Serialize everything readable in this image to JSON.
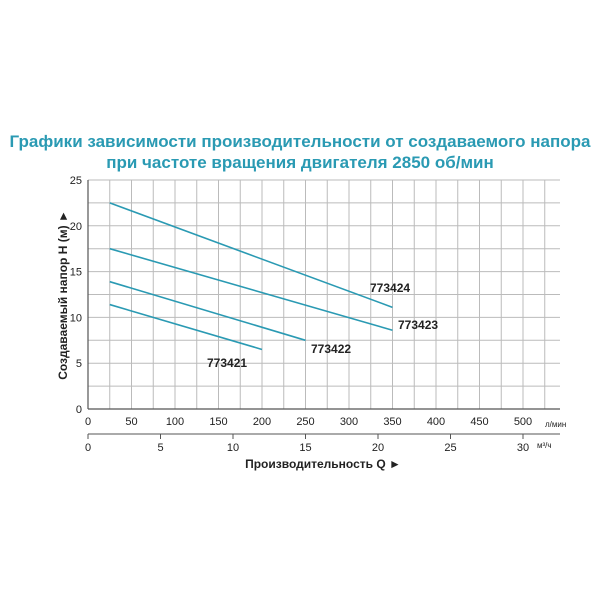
{
  "title_line1": "Графики зависимости производительности от создаваемого напора",
  "title_line2": "при частоте вращения двигателя 2850 об/мин",
  "chart_data": {
    "type": "line",
    "title": "Графики зависимости производительности от создаваемого напора при частоте вращения двигателя 2850 об/мин",
    "xlabel": "Производительность Q ►",
    "ylabel": "Создаваемый напор H (м) ►",
    "xlim": [
      0,
      550
    ],
    "ylim": [
      0,
      25
    ],
    "grid": true,
    "x_unit": "л/мин",
    "x2_unit": "м³/ч",
    "xticks": [
      0,
      50,
      100,
      150,
      200,
      250,
      300,
      350,
      400,
      450,
      500
    ],
    "x2ticks": [
      0,
      5,
      10,
      15,
      20,
      25,
      30
    ],
    "yticks": [
      0,
      5,
      10,
      15,
      20,
      25
    ],
    "line_color": "#2a9ab3",
    "series": [
      {
        "name": "773424",
        "x": [
          25,
          350
        ],
        "y": [
          22.5,
          11.1
        ]
      },
      {
        "name": "773423",
        "x": [
          25,
          350
        ],
        "y": [
          17.5,
          8.6
        ]
      },
      {
        "name": "773422",
        "x": [
          25,
          250
        ],
        "y": [
          13.9,
          7.5
        ]
      },
      {
        "name": "773421",
        "x": [
          25,
          200
        ],
        "y": [
          11.4,
          6.5
        ]
      }
    ]
  }
}
